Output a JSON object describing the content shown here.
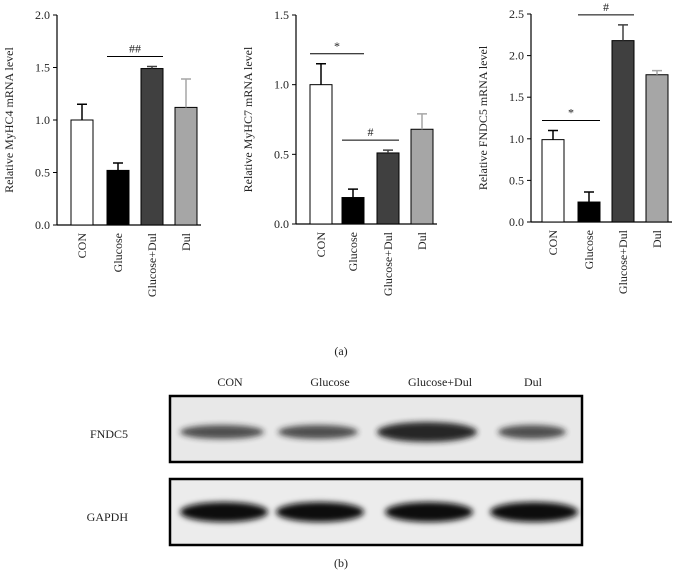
{
  "chart_data": [
    {
      "type": "bar",
      "ylabel": "Relative MyHC4 mRNA level",
      "categories": [
        "CON",
        "Glucose",
        "Glucose+Dul",
        "Dul"
      ],
      "values": [
        1.0,
        0.52,
        1.49,
        1.12
      ],
      "errors": [
        0.15,
        0.07,
        0.02,
        0.27
      ],
      "colors": [
        "#ffffff",
        "#000000",
        "#404040",
        "#a6a6a6"
      ],
      "ylim": [
        0,
        2.0
      ],
      "yticks": [
        {
          "value": 0,
          "label": "0.0"
        },
        {
          "value": 0.5,
          "label": "0.5"
        },
        {
          "value": 1.0,
          "label": "1.0"
        },
        {
          "value": 1.5,
          "label": "1.5"
        },
        {
          "value": 2.0,
          "label": "2.0"
        }
      ],
      "annotations": [
        {
          "text": "##",
          "between": [
            "Glucose",
            "Glucose+Dul"
          ]
        }
      ]
    },
    {
      "type": "bar",
      "ylabel": "Relative MyHC7 mRNA level",
      "categories": [
        "CON",
        "Glucose",
        "Glucose+Dul",
        "Dul"
      ],
      "values": [
        1.0,
        0.19,
        0.51,
        0.68
      ],
      "errors": [
        0.15,
        0.06,
        0.02,
        0.11
      ],
      "colors": [
        "#ffffff",
        "#000000",
        "#404040",
        "#a6a6a6"
      ],
      "ylim": [
        0,
        1.5
      ],
      "yticks": [
        {
          "value": 0,
          "label": "0.0"
        },
        {
          "value": 0.5,
          "label": "0.5"
        },
        {
          "value": 1.0,
          "label": "1.0"
        },
        {
          "value": 1.5,
          "label": "1.5"
        }
      ],
      "annotations": [
        {
          "text": "*",
          "between": [
            "CON",
            "Glucose"
          ]
        },
        {
          "text": "#",
          "between": [
            "Glucose",
            "Glucose+Dul"
          ]
        }
      ]
    },
    {
      "type": "bar",
      "ylabel": "Relative FNDC5 mRNA level",
      "categories": [
        "CON",
        "Glucose",
        "Glucose+Dul",
        "Dul"
      ],
      "values": [
        0.99,
        0.24,
        2.18,
        1.77
      ],
      "errors": [
        0.11,
        0.12,
        0.19,
        0.05
      ],
      "colors": [
        "#ffffff",
        "#000000",
        "#404040",
        "#a6a6a6"
      ],
      "ylim": [
        0,
        2.5
      ],
      "yticks": [
        {
          "value": 0,
          "label": "0.0"
        },
        {
          "value": 0.5,
          "label": "0.5"
        },
        {
          "value": 1.0,
          "label": "1.0"
        },
        {
          "value": 1.5,
          "label": "1.5"
        },
        {
          "value": 2.0,
          "label": "2.0"
        },
        {
          "value": 2.5,
          "label": "2.5"
        }
      ],
      "annotations": [
        {
          "text": "*",
          "between": [
            "CON",
            "Glucose"
          ]
        },
        {
          "text": "#",
          "between": [
            "Glucose",
            "Glucose+Dul"
          ]
        }
      ]
    }
  ],
  "figure": {
    "panel_a": "(a)",
    "panel_b": "(b)",
    "blot": {
      "lanes": [
        "CON",
        "Glucose",
        "Glucose+Dul",
        "Dul"
      ],
      "rows": [
        "FNDC5",
        "GAPDH"
      ]
    }
  }
}
